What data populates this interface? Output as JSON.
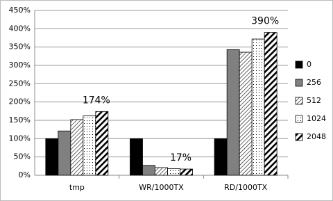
{
  "chart_data": {
    "type": "bar",
    "categories": [
      "tmp",
      "WR/1000TX",
      "RD/1000TX"
    ],
    "series": [
      {
        "name": "0",
        "color": "#000000",
        "pattern": "solid",
        "values": [
          100,
          100,
          100
        ]
      },
      {
        "name": "256",
        "color": "#808080",
        "pattern": "solid",
        "values": [
          121,
          27,
          343
        ]
      },
      {
        "name": "512",
        "color": "#000000",
        "pattern": "hatch",
        "values": [
          152,
          21,
          336
        ]
      },
      {
        "name": "1024",
        "color": "#000000",
        "pattern": "dots",
        "values": [
          162,
          18,
          372
        ]
      },
      {
        "name": "2048",
        "color": "#000000",
        "pattern": "stripes",
        "values": [
          174,
          17,
          390
        ],
        "value_labels": [
          "174%",
          "17%",
          "390%"
        ]
      }
    ],
    "ylim": [
      0,
      450
    ],
    "yticks": [
      {
        "value": 0,
        "label": "0%"
      },
      {
        "value": 50,
        "label": "50%"
      },
      {
        "value": 100,
        "label": "100%"
      },
      {
        "value": 150,
        "label": "150%"
      },
      {
        "value": 200,
        "label": "200%"
      },
      {
        "value": 250,
        "label": "250%"
      },
      {
        "value": 300,
        "label": "300%"
      },
      {
        "value": 350,
        "label": "350%"
      },
      {
        "value": 400,
        "label": "400%"
      },
      {
        "value": 450,
        "label": "450%"
      }
    ],
    "grid": true,
    "legend": "right"
  }
}
